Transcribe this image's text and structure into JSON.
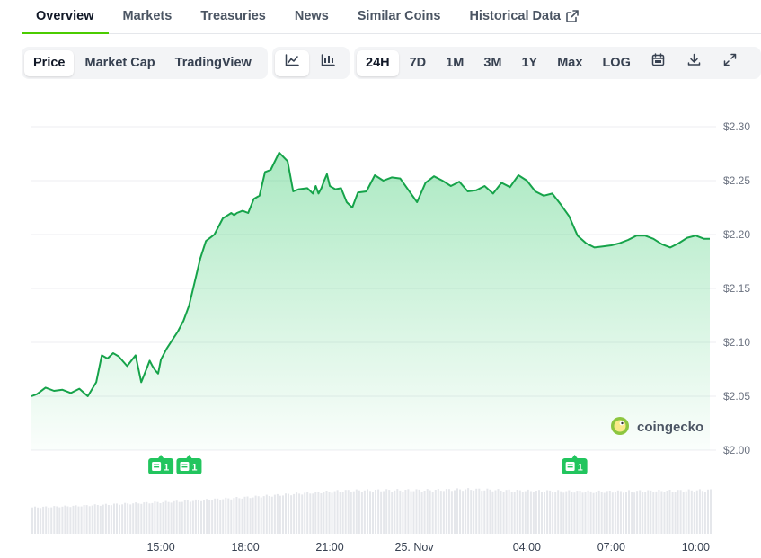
{
  "nav": {
    "tabs": [
      "Overview",
      "Markets",
      "Treasuries",
      "News",
      "Similar Coins",
      "Historical Data"
    ],
    "active": "Overview",
    "external_icon": "external-link-icon"
  },
  "toolbar": {
    "chart_views": [
      "Price",
      "Market Cap",
      "TradingView"
    ],
    "selected_view": "Price",
    "chart_style_icons": [
      "line-chart-icon",
      "candlestick-chart-icon"
    ],
    "selected_style": "line-chart-icon",
    "ranges": [
      "24H",
      "7D",
      "1M",
      "3M",
      "1Y",
      "Max",
      "LOG"
    ],
    "selected_range": "24H",
    "action_icons": [
      "calendar-icon",
      "download-icon",
      "fullscreen-icon"
    ]
  },
  "watermark": "coingecko",
  "colors": {
    "accent": "#4bcc00",
    "line": "#16a34a",
    "fill": "#22c55e",
    "volume": "#e5e7eb",
    "marker": "#22c55e"
  },
  "chart_data": {
    "type": "area",
    "title": "",
    "xlabel": "",
    "ylabel": "",
    "ylim": [
      2.0,
      2.3
    ],
    "y_ticks": [
      "$2.30",
      "$2.25",
      "$2.20",
      "$2.15",
      "$2.10",
      "$2.05",
      "$2.00"
    ],
    "y_tick_values": [
      2.3,
      2.25,
      2.2,
      2.15,
      2.1,
      2.05,
      2.0
    ],
    "x_ticks": [
      "15:00",
      "18:00",
      "21:00",
      "25. Nov",
      "04:00",
      "07:00",
      "10:00"
    ],
    "x_tick_hours": [
      15,
      18,
      21,
      24,
      28,
      31,
      34
    ],
    "x_range_hours": [
      10.4,
      34.5
    ],
    "grid": true,
    "series": [
      {
        "x": [
          10.4,
          10.6,
          10.9,
          11.2,
          11.5,
          11.8,
          12.1,
          12.4,
          12.7,
          12.9,
          13.1,
          13.3,
          13.5,
          13.8,
          14.1,
          14.3,
          14.5,
          14.6,
          14.7,
          14.8,
          14.9,
          15.0,
          15.2,
          15.4,
          15.6,
          15.8,
          16.0,
          16.2,
          16.4,
          16.6,
          16.9,
          17.2,
          17.5,
          17.6,
          17.7,
          17.9,
          18.1,
          18.3,
          18.5,
          18.7,
          18.9,
          19.2,
          19.5,
          19.7,
          19.9,
          20.2,
          20.4,
          20.5,
          20.6,
          20.7,
          20.8,
          20.9,
          21.0,
          21.2,
          21.4,
          21.6,
          21.8,
          22.0,
          22.3,
          22.6,
          22.9,
          23.2,
          23.5,
          23.8,
          24.1,
          24.4,
          24.7,
          25.0,
          25.3,
          25.6,
          25.9,
          26.2,
          26.5,
          26.8,
          27.1,
          27.4,
          27.7,
          28.0,
          28.3,
          28.6,
          28.9,
          29.2,
          29.5,
          29.8,
          30.1,
          30.4,
          30.7,
          31.0,
          31.3,
          31.6,
          31.9,
          32.2,
          32.5,
          32.8,
          33.1,
          33.4,
          33.7,
          34.0,
          34.3,
          34.5
        ],
        "values": [
          2.05,
          2.052,
          2.058,
          2.055,
          2.056,
          2.053,
          2.057,
          2.05,
          2.063,
          2.088,
          2.085,
          2.09,
          2.087,
          2.078,
          2.088,
          2.063,
          2.076,
          2.083,
          2.078,
          2.074,
          2.071,
          2.084,
          2.094,
          2.102,
          2.11,
          2.12,
          2.134,
          2.156,
          2.178,
          2.194,
          2.2,
          2.215,
          2.22,
          2.218,
          2.22,
          2.222,
          2.22,
          2.233,
          2.236,
          2.258,
          2.26,
          2.276,
          2.268,
          2.24,
          2.242,
          2.243,
          2.238,
          2.245,
          2.238,
          2.243,
          2.25,
          2.256,
          2.245,
          2.242,
          2.243,
          2.23,
          2.225,
          2.239,
          2.24,
          2.255,
          2.25,
          2.253,
          2.252,
          2.241,
          2.23,
          2.248,
          2.254,
          2.25,
          2.245,
          2.249,
          2.24,
          2.241,
          2.245,
          2.238,
          2.248,
          2.244,
          2.255,
          2.25,
          2.24,
          2.236,
          2.238,
          2.228,
          2.217,
          2.199,
          2.192,
          2.188,
          2.189,
          2.19,
          2.192,
          2.195,
          2.199,
          2.199,
          2.196,
          2.191,
          2.188,
          2.192,
          2.197,
          2.199,
          2.196,
          2.196
        ]
      }
    ],
    "volume": {
      "x": [
        10.4,
        12.0,
        14.0,
        16.0,
        18.0,
        20.0,
        21.5,
        23.0,
        24.5,
        26.0,
        27.5,
        29.0,
        30.5,
        32.0,
        33.5,
        34.5
      ],
      "values": [
        0.52,
        0.55,
        0.6,
        0.65,
        0.72,
        0.8,
        0.85,
        0.86,
        0.86,
        0.88,
        0.85,
        0.84,
        0.83,
        0.84,
        0.85,
        0.86
      ]
    },
    "event_markers": [
      {
        "x": 15.0,
        "label": "1"
      },
      {
        "x": 16.0,
        "label": "1"
      },
      {
        "x": 29.7,
        "label": "1"
      }
    ]
  }
}
